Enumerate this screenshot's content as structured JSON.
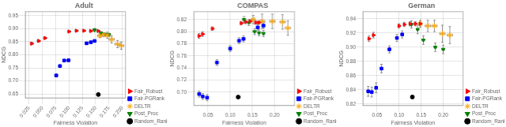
{
  "chart_data": [
    {
      "type": "scatter",
      "title": "Adult",
      "xlabel": "Fairness Violation",
      "ylabel": "NDCG",
      "xlim": [
        0.018,
        0.206
      ],
      "ylim": [
        0.635,
        0.965
      ],
      "xticks": [
        0.025,
        {
          "value": 0.05,
          "label": "0.050"
        },
        0.075,
        {
          "value": 0.1,
          "label": "0.100"
        },
        0.125,
        {
          "value": 0.15,
          "label": "0.150"
        },
        0.175,
        {
          "value": 0.2,
          "label": "0.200"
        }
      ],
      "yticks": [
        0.65,
        {
          "value": 0.7,
          "label": "0.70"
        },
        0.75,
        {
          "value": 0.8,
          "label": "0.80"
        },
        0.85,
        {
          "value": 0.9,
          "label": "0.90"
        },
        0.95
      ],
      "grid": true,
      "legend": "lower right",
      "series": [
        {
          "name": "Fair_Robust",
          "color": "red",
          "marker": "triangle-right",
          "x": [
            0.03,
            0.043,
            0.055,
            0.1,
            0.114,
            0.128,
            0.141,
            0.155
          ],
          "values": [
            0.843,
            0.853,
            0.864,
            0.889,
            0.892,
            0.892,
            0.891,
            0.891
          ],
          "xerr": [
            0.003,
            0.003,
            0.003,
            0.003,
            0.003,
            0.003,
            0.003,
            0.003
          ],
          "yerr": [
            0.005,
            0.005,
            0.004,
            0.003,
            0.003,
            0.003,
            0.003,
            0.003
          ]
        },
        {
          "name": "Fair-PGRank",
          "color": "blue",
          "marker": "square",
          "x": [
            0.076,
            0.083,
            0.091,
            0.099,
            0.133,
            0.141,
            0.148
          ],
          "values": [
            0.721,
            0.757,
            0.778,
            0.779,
            0.844,
            0.848,
            0.853
          ],
          "xerr": [
            0.003,
            0.003,
            0.003,
            0.003,
            0.003,
            0.003,
            0.003
          ],
          "yerr": [
            0.006,
            0.005,
            0.005,
            0.005,
            0.004,
            0.004,
            0.004
          ]
        },
        {
          "name": "DELTR",
          "color": "orange",
          "marker": "star",
          "x": [
            0.158,
            0.165,
            0.172,
            0.18,
            0.191,
            0.198
          ],
          "values": [
            0.873,
            0.877,
            0.875,
            0.859,
            0.841,
            0.835
          ],
          "xerr": [
            0.004,
            0.004,
            0.005,
            0.005,
            0.005,
            0.005
          ],
          "yerr": [
            0.007,
            0.007,
            0.012,
            0.014,
            0.014,
            0.014
          ]
        },
        {
          "name": "Post_Proc",
          "color": "green",
          "marker": "triangle-down",
          "x": [
            0.148,
            0.16,
            0.168,
            0.175
          ],
          "values": [
            0.895,
            0.883,
            0.878,
            0.877
          ],
          "xerr": [
            0.003,
            0.003,
            0.003,
            0.003
          ],
          "yerr": [
            0.006,
            0.006,
            0.006,
            0.006
          ]
        },
        {
          "name": "Random_Ranker",
          "color": "black",
          "marker": "circle",
          "x": [
            0.155
          ],
          "values": [
            0.648
          ]
        }
      ]
    },
    {
      "type": "scatter",
      "title": "COMPAS",
      "xlabel": "Fairness Violation",
      "ylabel": "NDCG",
      "xlim": [
        0.018,
        0.245
      ],
      "ylim": [
        0.678,
        0.833
      ],
      "xticks": [
        0.05,
        {
          "value": 0.1,
          "label": "0.10"
        },
        0.15,
        {
          "value": 0.2,
          "label": "0.20"
        }
      ],
      "yticks": [
        {
          "value": 0.7,
          "label": "0.70"
        },
        0.72,
        0.74,
        0.76,
        0.78,
        {
          "value": 0.8,
          "label": "0.80"
        },
        0.82
      ],
      "grid": true,
      "legend": "lower right",
      "series": [
        {
          "name": "Fair_Robust",
          "color": "red",
          "marker": "triangle-right",
          "x": [
            0.03,
            0.038,
            0.06,
            0.125,
            0.135,
            0.145,
            0.158,
            0.165
          ],
          "values": [
            0.793,
            0.796,
            0.805,
            0.814,
            0.816,
            0.817,
            0.815,
            0.815
          ],
          "xerr": [
            0.003,
            0.003,
            0.003,
            0.003,
            0.003,
            0.003,
            0.003,
            0.003
          ],
          "yerr": [
            0.004,
            0.004,
            0.003,
            0.003,
            0.003,
            0.003,
            0.003,
            0.003
          ]
        },
        {
          "name": "Fair-PGRank",
          "color": "blue",
          "marker": "square",
          "x": [
            0.03,
            0.038,
            0.048,
            0.07,
            0.1,
            0.12,
            0.13,
            0.162,
            0.175
          ],
          "values": [
            0.697,
            0.693,
            0.691,
            0.749,
            0.772,
            0.785,
            0.788,
            0.807,
            0.81
          ],
          "xerr": [
            0.003,
            0.003,
            0.003,
            0.003,
            0.003,
            0.003,
            0.003,
            0.003,
            0.003
          ],
          "yerr": [
            0.005,
            0.005,
            0.005,
            0.005,
            0.005,
            0.005,
            0.005,
            0.005,
            0.005
          ]
        },
        {
          "name": "DELTR",
          "color": "orange",
          "marker": "star",
          "x": [
            0.152,
            0.172,
            0.195,
            0.218,
            0.23
          ],
          "values": [
            0.82,
            0.817,
            0.817,
            0.816,
            0.806
          ],
          "xerr": [
            0.004,
            0.006,
            0.006,
            0.006,
            0.006
          ],
          "yerr": [
            0.007,
            0.012,
            0.012,
            0.012,
            0.012
          ]
        },
        {
          "name": "Post_Proc",
          "color": "green",
          "marker": "triangle-down",
          "x": [
            0.131,
            0.142,
            0.155,
            0.165,
            0.175
          ],
          "values": [
            0.82,
            0.815,
            0.8,
            0.798,
            0.797
          ],
          "xerr": [
            0.003,
            0.003,
            0.003,
            0.003,
            0.003
          ],
          "yerr": [
            0.005,
            0.005,
            0.005,
            0.005,
            0.005
          ]
        },
        {
          "name": "Random_Ranker",
          "color": "black",
          "marker": "circle",
          "x": [
            0.118
          ],
          "values": [
            0.692
          ]
        }
      ]
    },
    {
      "type": "scatter",
      "title": "German",
      "xlabel": "Fairness Violation",
      "ylabel": "NDCG",
      "xlim": [
        0.018,
        0.245
      ],
      "ylim": [
        0.818,
        0.95
      ],
      "xticks": [
        0.05,
        {
          "value": 0.1,
          "label": "0.10"
        },
        0.15,
        {
          "value": 0.2,
          "label": "0.20"
        }
      ],
      "yticks": [
        0.82,
        0.84,
        0.86,
        0.88,
        {
          "value": 0.9,
          "label": "0.90"
        },
        0.92,
        0.94
      ],
      "grid": true,
      "legend": "lower right",
      "series": [
        {
          "name": "Fair_Robust",
          "color": "red",
          "marker": "triangle-right",
          "x": [
            0.032,
            0.042,
            0.1,
            0.112,
            0.125,
            0.137,
            0.148
          ],
          "values": [
            0.912,
            0.917,
            0.93,
            0.932,
            0.933,
            0.933,
            0.933
          ],
          "xerr": [
            0.003,
            0.003,
            0.003,
            0.003,
            0.003,
            0.003,
            0.003
          ],
          "yerr": [
            0.004,
            0.004,
            0.003,
            0.003,
            0.003,
            0.003,
            0.003
          ]
        },
        {
          "name": "Fair-PGRank",
          "color": "blue",
          "marker": "square",
          "x": [
            0.03,
            0.038,
            0.048,
            0.06,
            0.078,
            0.095,
            0.107
          ],
          "values": [
            0.838,
            0.837,
            0.843,
            0.87,
            0.897,
            0.913,
            0.918
          ],
          "xerr": [
            0.003,
            0.003,
            0.003,
            0.003,
            0.003,
            0.003,
            0.003
          ],
          "yerr": [
            0.007,
            0.007,
            0.007,
            0.006,
            0.005,
            0.005,
            0.005
          ]
        },
        {
          "name": "DELTR",
          "color": "orange",
          "marker": "star",
          "x": [
            0.148,
            0.165,
            0.18,
            0.198,
            0.215
          ],
          "values": [
            0.933,
            0.93,
            0.93,
            0.919,
            0.917
          ],
          "xerr": [
            0.004,
            0.006,
            0.006,
            0.006,
            0.006
          ],
          "yerr": [
            0.005,
            0.008,
            0.008,
            0.012,
            0.012
          ]
        },
        {
          "name": "Post_Proc",
          "color": "green",
          "marker": "triangle-down",
          "x": [
            0.128,
            0.142,
            0.155,
            0.182,
            0.2
          ],
          "values": [
            0.932,
            0.925,
            0.91,
            0.9,
            0.897
          ],
          "xerr": [
            0.003,
            0.003,
            0.003,
            0.003,
            0.003
          ],
          "yerr": [
            0.005,
            0.006,
            0.006,
            0.006,
            0.006
          ]
        },
        {
          "name": "Random_Ranker",
          "color": "black",
          "marker": "circle",
          "x": [
            0.13
          ],
          "values": [
            0.83
          ]
        }
      ]
    }
  ]
}
